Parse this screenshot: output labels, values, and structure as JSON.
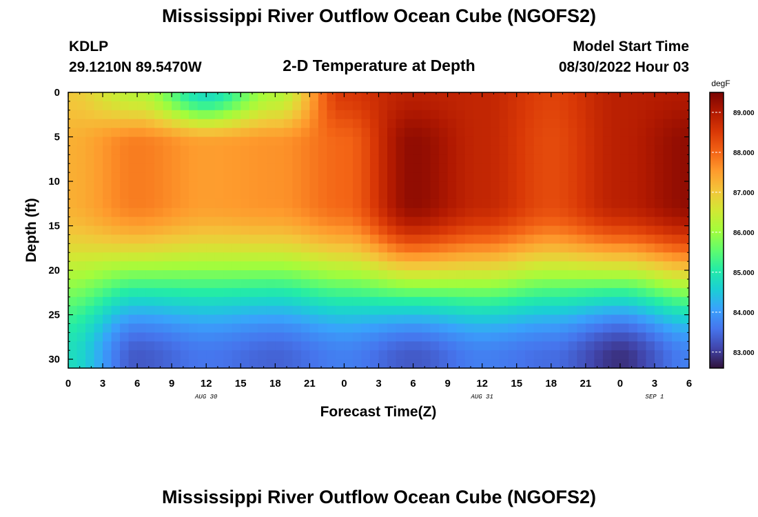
{
  "header": {
    "title": "Mississippi River Outflow Ocean Cube (NGOFS2)",
    "station_id": "KDLP",
    "location": "29.1210N  89.5470W",
    "subtitle": "2-D Temperature at Depth",
    "model_start_label": "Model Start Time",
    "model_start_value": "08/30/2022 Hour 03"
  },
  "footer": {
    "title": "Mississippi River Outflow Ocean Cube (NGOFS2)"
  },
  "chart_data": {
    "type": "heatmap",
    "title": "2-D Temperature at Depth",
    "xlabel": "Forecast Time(Z)",
    "ylabel": "Depth (ft)",
    "x_tick_labels": [
      "0",
      "3",
      "6",
      "9",
      "12",
      "15",
      "18",
      "21",
      "0",
      "3",
      "6",
      "9",
      "12",
      "15",
      "18",
      "21",
      "0",
      "3",
      "6"
    ],
    "x_range_hours": [
      0,
      54
    ],
    "date_labels": [
      {
        "text": "AUG 30",
        "hour": 12
      },
      {
        "text": "AUG 31",
        "hour": 36
      },
      {
        "text": "SEP 1",
        "hour": 51
      }
    ],
    "y_ticks": [
      0,
      5,
      10,
      15,
      20,
      25,
      30
    ],
    "y_range": [
      0,
      31
    ],
    "y_inverted": true,
    "colorbar": {
      "unit": "degF",
      "range": [
        82.6,
        89.5
      ],
      "ticks": [
        "89.000",
        "88.000",
        "87.000",
        "86.000",
        "85.000",
        "84.000",
        "83.000"
      ],
      "tick_values": [
        89,
        88,
        87,
        86,
        85,
        84,
        83
      ],
      "colormap": [
        "#30123b",
        "#4145ab",
        "#4675ed",
        "#39a2fc",
        "#1bcfd4",
        "#24eca6",
        "#61fc6c",
        "#a4fc3b",
        "#d1e834",
        "#f3c63a",
        "#fe9b2d",
        "#f36315",
        "#d93806",
        "#b11901",
        "#7a0402"
      ]
    },
    "surface_layer_profile": [
      {
        "hour": 0,
        "temp": 87.0
      },
      {
        "hour": 6,
        "temp": 86.3
      },
      {
        "hour": 12,
        "temp": 84.8
      },
      {
        "hour": 18,
        "temp": 86.2
      },
      {
        "hour": 24,
        "temp": 88.5
      },
      {
        "hour": 30,
        "temp": 88.9
      },
      {
        "hour": 36,
        "temp": 88.8
      },
      {
        "hour": 42,
        "temp": 88.4
      },
      {
        "hour": 48,
        "temp": 88.9
      },
      {
        "hour": 54,
        "temp": 89.0
      }
    ],
    "mid_layer_profile": [
      {
        "hour": 0,
        "temp": 87.3
      },
      {
        "hour": 6,
        "temp": 87.8
      },
      {
        "hour": 12,
        "temp": 87.5
      },
      {
        "hour": 18,
        "temp": 87.6
      },
      {
        "hour": 24,
        "temp": 88.0
      },
      {
        "hour": 30,
        "temp": 89.3
      },
      {
        "hour": 36,
        "temp": 88.8
      },
      {
        "hour": 42,
        "temp": 88.3
      },
      {
        "hour": 48,
        "temp": 88.9
      },
      {
        "hour": 54,
        "temp": 89.3
      }
    ],
    "bottom_layer_profile": [
      {
        "hour": 0,
        "temp": 84.8
      },
      {
        "hour": 6,
        "temp": 83.3
      },
      {
        "hour": 12,
        "temp": 83.6
      },
      {
        "hour": 18,
        "temp": 83.4
      },
      {
        "hour": 24,
        "temp": 83.7
      },
      {
        "hour": 30,
        "temp": 83.3
      },
      {
        "hour": 36,
        "temp": 83.7
      },
      {
        "hour": 42,
        "temp": 83.5
      },
      {
        "hour": 48,
        "temp": 82.9
      },
      {
        "hour": 54,
        "temp": 83.7
      }
    ]
  }
}
